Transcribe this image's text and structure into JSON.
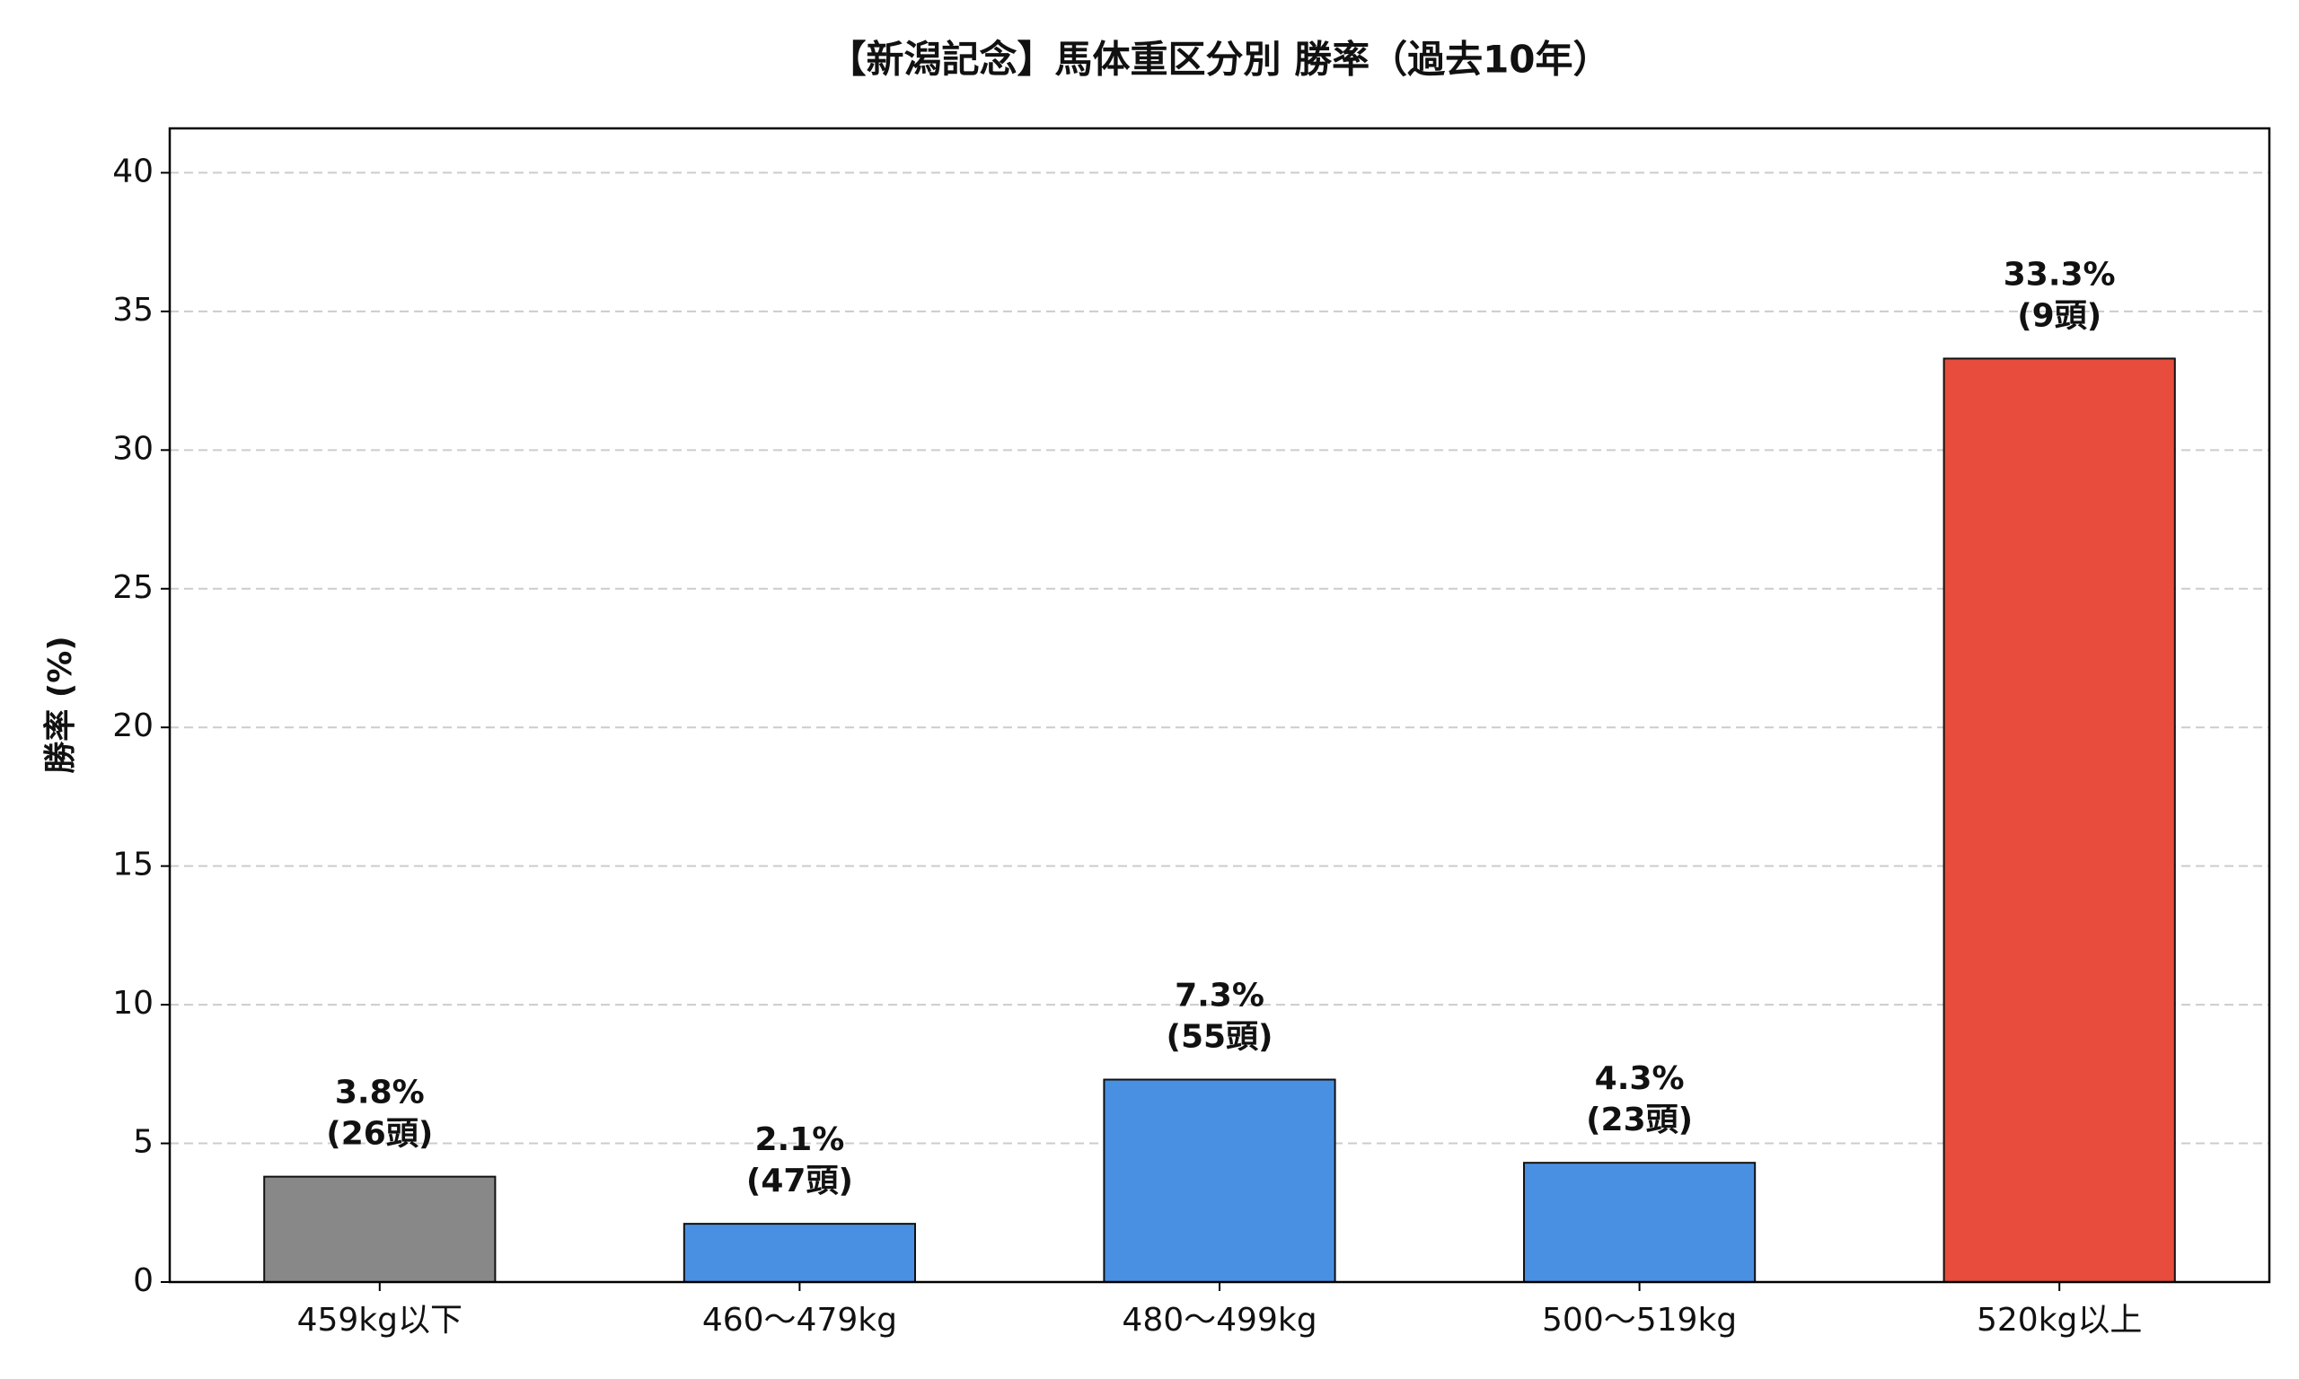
{
  "chart_data": {
    "type": "bar",
    "title": "【新潟記念】馬体重区分別 勝率（過去10年）",
    "y_label": "勝率 (%)",
    "categories": [
      "459kg以下",
      "460～479kg",
      "480～499kg",
      "500～519kg",
      "520kg以上"
    ],
    "values": [
      3.8,
      2.1,
      7.3,
      4.3,
      33.3
    ],
    "value_labels": [
      "3.8%",
      "2.1%",
      "7.3%",
      "4.3%",
      "33.3%"
    ],
    "count_labels": [
      "(26頭)",
      "(47頭)",
      "(55頭)",
      "(23頭)",
      "(9頭)"
    ],
    "colors": [
      "#888888",
      "#4a90e2",
      "#4a90e2",
      "#4a90e2",
      "#e74c3c"
    ],
    "ylim": [
      0,
      41.6
    ],
    "yticks": [
      0,
      5,
      10,
      15,
      20,
      25,
      30,
      35,
      40
    ],
    "grid": true
  }
}
